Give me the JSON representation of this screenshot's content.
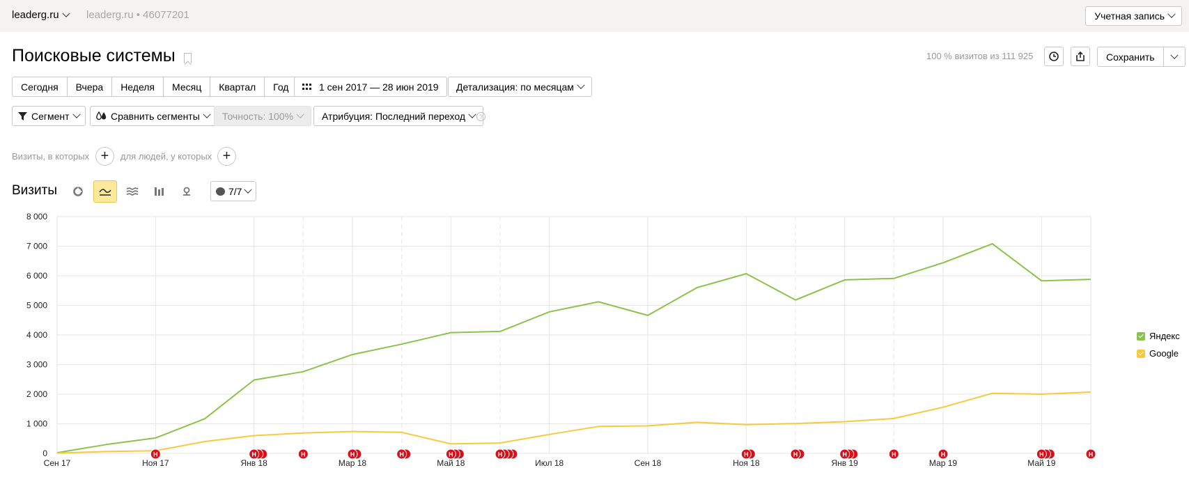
{
  "topbar": {
    "site": "leaderg.ru",
    "counter": "leaderg.ru • 46077201",
    "account": "Учетная запись"
  },
  "header": {
    "title": "Поисковые системы",
    "share_info": "100 % визитов из 111 925",
    "save_label": "Сохранить"
  },
  "period": {
    "buttons": [
      "Сегодня",
      "Вчера",
      "Неделя",
      "Месяц",
      "Квартал",
      "Год"
    ],
    "date_range": "1 сен 2017 — 28 июн 2019",
    "detail": "Детализация: по месяцам"
  },
  "filters": {
    "segment": "Сегмент",
    "compare": "Сравнить сегменты",
    "accuracy": "Точность: 100%",
    "attribution": "Атрибуция: Последний переход"
  },
  "conditions": {
    "visits_label": "Визиты, в которых",
    "people_label": "для людей, у которых"
  },
  "chart_section": {
    "title": "Визиты",
    "notes": "7/7",
    "icons": [
      "pie-chart-icon",
      "line-chart-icon",
      "area-chart-icon",
      "bar-chart-icon",
      "map-icon"
    ]
  },
  "colors": {
    "yandex": "#8bc34a",
    "google": "#f9c93a",
    "marker": "#d6101a"
  },
  "chart_data": {
    "type": "line",
    "x": [
      "2017-09",
      "2017-10",
      "2017-11",
      "2017-12",
      "2018-01",
      "2018-02",
      "2018-03",
      "2018-04",
      "2018-05",
      "2018-06",
      "2018-07",
      "2018-08",
      "2018-09",
      "2018-10",
      "2018-11",
      "2018-12",
      "2019-01",
      "2019-02",
      "2019-03",
      "2019-04",
      "2019-05",
      "2019-06"
    ],
    "x_tick_labels": [
      "Сен 17",
      "Ноя 17",
      "Янв 18",
      "Мар 18",
      "Май 18",
      "Июл 18",
      "Сен 18",
      "Ноя 18",
      "Янв 19",
      "Мар 19",
      "Май 19"
    ],
    "x_tick_indices": [
      0,
      2,
      4,
      6,
      8,
      10,
      12,
      14,
      16,
      18,
      20
    ],
    "ylim": [
      0,
      8000
    ],
    "y_ticks": [
      0,
      1000,
      2000,
      3000,
      4000,
      5000,
      6000,
      7000,
      8000
    ],
    "y_tick_labels": [
      "0",
      "1 000",
      "2 000",
      "3 000",
      "4 000",
      "5 000",
      "6 000",
      "7 000",
      "8 000"
    ],
    "series": [
      {
        "name": "Яндекс",
        "values": [
          20,
          300,
          520,
          1170,
          2480,
          2760,
          3340,
          3690,
          4080,
          4120,
          4780,
          5120,
          4660,
          5600,
          6070,
          5180,
          5860,
          5910,
          6440,
          7080,
          5830,
          5880
        ]
      },
      {
        "name": "Google",
        "values": [
          10,
          60,
          90,
          400,
          600,
          690,
          740,
          710,
          320,
          350,
          640,
          910,
          930,
          1050,
          970,
          1010,
          1070,
          1180,
          1560,
          2030,
          2000,
          2070
        ]
      }
    ],
    "legend": "right",
    "grid": true,
    "markers": [
      {
        "x": 2,
        "count": 1
      },
      {
        "x": 4,
        "count": 3
      },
      {
        "x": 5,
        "count": 1
      },
      {
        "x": 6,
        "count": 2
      },
      {
        "x": 7,
        "count": 2
      },
      {
        "x": 8,
        "count": 3
      },
      {
        "x": 9,
        "count": 4
      },
      {
        "x": 14,
        "count": 2
      },
      {
        "x": 15,
        "count": 2
      },
      {
        "x": 16,
        "count": 3
      },
      {
        "x": 17,
        "count": 1
      },
      {
        "x": 18,
        "count": 1
      },
      {
        "x": 20,
        "count": 3
      },
      {
        "x": 21,
        "count": 1
      }
    ],
    "marker_label": "Н"
  }
}
